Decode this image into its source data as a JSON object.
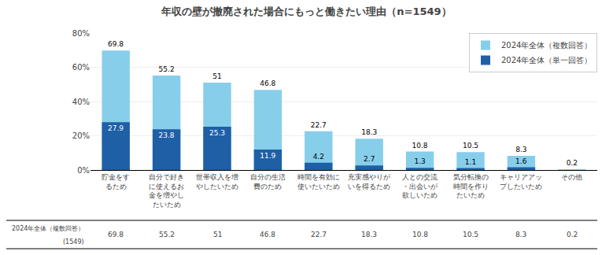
{
  "chart_data": {
    "type": "bar",
    "title": "年収の壁が撤廃された場合にもっと働きたい理由（n=1549）",
    "categories": [
      "貯金をするため",
      "自分で好きに使えるお金を増やしたいため",
      "世帯収入を増やしたいため",
      "自分の生活費のため",
      "時間を有効に使いたいため",
      "充実感やりがいを得るため",
      "人との交流・出会いが欲しいため",
      "気分転換の時間を作りたいため",
      "キャリアアップしたいため",
      "その他"
    ],
    "series": [
      {
        "name": "2024年全体（複数回答）",
        "color": "#87CEEB",
        "values": [
          69.8,
          55.2,
          51.0,
          46.8,
          22.7,
          18.3,
          10.8,
          10.5,
          8.3,
          0.2
        ]
      },
      {
        "name": "2024年全体（単一回答）",
        "color": "#1F5FA6",
        "values": [
          27.9,
          23.8,
          25.3,
          11.9,
          4.2,
          2.7,
          1.3,
          1.1,
          1.6,
          null
        ]
      }
    ],
    "stacked": false,
    "ylim": [
      0,
      80
    ],
    "yticks": [
      {
        "value": 0,
        "label": "0%"
      },
      {
        "value": 20,
        "label": "20%"
      },
      {
        "value": 40,
        "label": "40%"
      },
      {
        "value": 60,
        "label": "60%"
      },
      {
        "value": 80,
        "label": "80%"
      }
    ],
    "grid": true,
    "legend": "upper right",
    "data_labels": true,
    "annotations": [
      "2024年全体（複数回答）",
      "(1549)"
    ]
  }
}
